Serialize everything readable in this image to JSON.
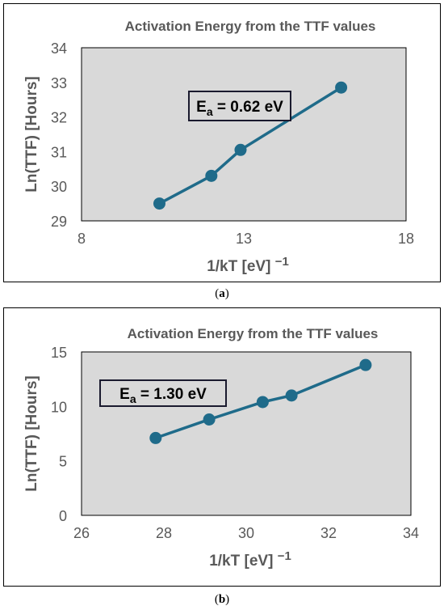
{
  "chart_data": [
    {
      "type": "scatter",
      "title": "Activation Energy from the TTF values",
      "xlabel": "1/kT [eV]",
      "xlabel_sup": "−1",
      "ylabel": "Ln(TTF) [Hours]",
      "xlim": [
        8,
        18
      ],
      "ylim": [
        29,
        34
      ],
      "xticks": [
        8,
        13,
        18
      ],
      "yticks": [
        29,
        30,
        31,
        32,
        33,
        34
      ],
      "grid": false,
      "series_color": "#1f6b8a",
      "plot_bg": "#d9d9d9",
      "trendline": true,
      "annotation": {
        "prefix": "E",
        "sub": "a",
        "text": " = 0.62 eV"
      },
      "points": [
        {
          "x": 10.4,
          "y": 29.5
        },
        {
          "x": 12.0,
          "y": 30.3
        },
        {
          "x": 12.9,
          "y": 31.05
        },
        {
          "x": 16.0,
          "y": 32.85
        }
      ],
      "caption": "a"
    },
    {
      "type": "scatter",
      "title": "Activation Energy from the TTF values",
      "xlabel": "1/kT [eV]",
      "xlabel_sup": "−1",
      "ylabel": "Ln(TTF) [Hours]",
      "xlim": [
        26,
        34
      ],
      "ylim": [
        0,
        15
      ],
      "xticks": [
        26,
        28,
        30,
        32,
        34
      ],
      "yticks": [
        0,
        5,
        10,
        15
      ],
      "grid": false,
      "series_color": "#1f6b8a",
      "plot_bg": "#d9d9d9",
      "trendline": true,
      "annotation": {
        "prefix": "E",
        "sub": "a",
        "text": " = 1.30 eV"
      },
      "points": [
        {
          "x": 27.8,
          "y": 7.1
        },
        {
          "x": 29.1,
          "y": 8.8
        },
        {
          "x": 30.4,
          "y": 10.4
        },
        {
          "x": 31.1,
          "y": 11.0
        },
        {
          "x": 32.9,
          "y": 13.8
        }
      ],
      "caption": "b"
    }
  ]
}
